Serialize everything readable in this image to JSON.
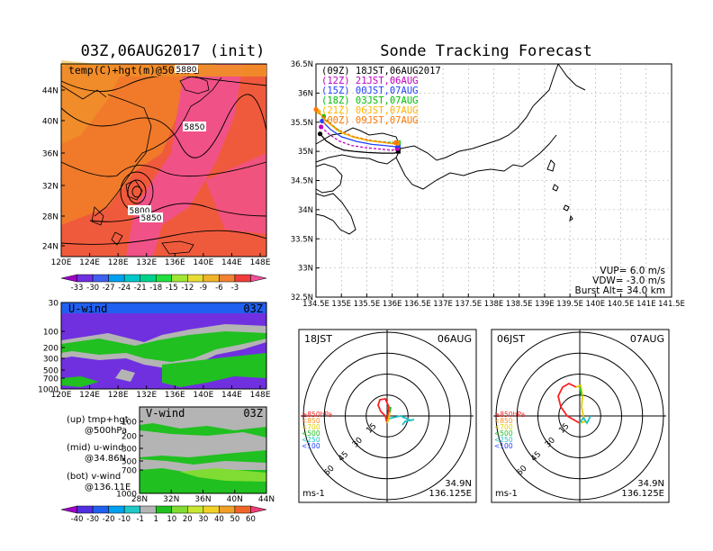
{
  "left_title": "03Z,06AUG2017 (init)",
  "right_title": "Sonde Tracking Forecast",
  "chart_data": [
    {
      "type": "heatmap",
      "panel": "upper-air map",
      "label": "temp(C)+hgt(m)@500hPa",
      "x_ticks": [
        "120E",
        "124E",
        "128E",
        "132E",
        "136E",
        "140E",
        "144E",
        "148E"
      ],
      "y_ticks": [
        "24N",
        "28N",
        "32N",
        "36N",
        "40N",
        "44N"
      ],
      "contour_labels": [
        "5880",
        "5850",
        "5800",
        "5850"
      ],
      "colorbar_ticks": [
        "-33",
        "-30",
        "-27",
        "-24",
        "-21",
        "-18",
        "-15",
        "-12",
        "-9",
        "-6",
        "-3"
      ],
      "colorbar_colors": [
        "#a000c8",
        "#7030e0",
        "#4060f0",
        "#00a0f0",
        "#00c8c8",
        "#00d28c",
        "#20e040",
        "#a0e632",
        "#e6dc32",
        "#f0b428",
        "#f08232",
        "#f03c3c",
        "#f0509a"
      ]
    },
    {
      "type": "heatmap",
      "panel": "u-wind",
      "label": "U-wind",
      "time": "03Z",
      "y_ticks": [
        "30",
        "100",
        "200",
        "300",
        "500",
        "700",
        "1000"
      ],
      "x_ticks": [
        "120E",
        "124E",
        "128E",
        "132E",
        "136E",
        "140E",
        "144E",
        "148E"
      ]
    },
    {
      "type": "heatmap",
      "panel": "v-wind",
      "label": "V-wind",
      "time": "03Z",
      "y_ticks": [
        "100",
        "200",
        "300",
        "500",
        "700",
        "1000"
      ],
      "x_ticks": [
        "28N",
        "32N",
        "36N",
        "40N",
        "44N"
      ],
      "colorbar_ticks": [
        "-40",
        "-30",
        "-20",
        "-10",
        "-1",
        "1",
        "10",
        "20",
        "30",
        "40",
        "50",
        "60"
      ],
      "colorbar_colors": [
        "#a000c8",
        "#5030e0",
        "#2060f0",
        "#00a0f0",
        "#20c8c8",
        "#b4b4b4",
        "#20c020",
        "#80dc32",
        "#c8e632",
        "#f0d228",
        "#f0a028",
        "#f06428",
        "#f03c78"
      ]
    },
    {
      "type": "line",
      "panel": "sonde tracking",
      "x_ticks": [
        "134.5E",
        "135E",
        "135.5E",
        "136E",
        "136.5E",
        "137E",
        "137.5E",
        "138E",
        "138.5E",
        "139E",
        "139.5E",
        "140E",
        "140.5E",
        "141E",
        "141.5E"
      ],
      "y_ticks": [
        "32.5N",
        "33N",
        "33.5N",
        "34N",
        "34.5N",
        "35N",
        "35.5N",
        "36N",
        "36.5N"
      ],
      "xlim": [
        134.5,
        141.5
      ],
      "ylim": [
        32.5,
        36.5
      ],
      "series": [
        {
          "name": "(09Z) 18JST,06AUG2017",
          "color": "#000000",
          "lon": [
            134.58,
            134.7,
            134.88,
            135.05,
            135.25,
            135.5,
            135.8,
            136.05,
            136.12
          ],
          "lat": [
            35.3,
            35.18,
            35.08,
            35.02,
            35.0,
            34.98,
            34.97,
            34.97,
            35.0
          ]
        },
        {
          "name": "(12Z) 21JST,06AUG",
          "color": "#c000c0",
          "lon": [
            134.6,
            134.75,
            134.95,
            135.2,
            135.5,
            135.75,
            136.0,
            136.1
          ],
          "lat": [
            35.42,
            35.3,
            35.18,
            35.1,
            35.06,
            35.04,
            35.02,
            35.05
          ]
        },
        {
          "name": "(15Z) 00JST,07AUG",
          "color": "#2040ff",
          "lon": [
            134.62,
            134.78,
            135.0,
            135.3,
            135.6,
            135.85,
            136.05,
            136.12
          ],
          "lat": [
            35.52,
            35.38,
            35.25,
            35.17,
            35.12,
            35.1,
            35.08,
            35.1
          ]
        },
        {
          "name": "(18Z) 03JST,07AUG",
          "color": "#00c000",
          "lon": [
            134.65,
            134.8,
            135.05,
            135.35,
            135.6,
            135.85,
            136.05,
            136.12
          ],
          "lat": [
            35.6,
            35.46,
            35.3,
            35.22,
            35.18,
            35.16,
            35.15,
            35.15
          ]
        },
        {
          "name": "(21Z) 06JST,07AUG",
          "color": "#ffb400",
          "lon": [
            134.55,
            134.7,
            134.95,
            135.25,
            135.55,
            135.82,
            136.02,
            136.1
          ],
          "lat": [
            35.68,
            35.52,
            35.34,
            35.24,
            35.18,
            35.15,
            35.13,
            35.14
          ]
        },
        {
          "name": "(00Z) 09JST,07AUG",
          "color": "#ff7800",
          "lon": [
            134.5,
            134.66,
            134.92,
            135.22,
            135.52,
            135.8,
            136.0,
            136.08
          ],
          "lat": [
            35.72,
            35.56,
            35.38,
            35.26,
            35.2,
            35.16,
            35.14,
            35.15
          ]
        }
      ]
    }
  ],
  "params": {
    "vup": "VUP=  6.0 m/s",
    "vdw": "VDW= -3.0 m/s",
    "burst": "Burst Alt= 34.0 km"
  },
  "hodo_left": {
    "time": "18JST",
    "date": "06AUG",
    "lat": "34.9N",
    "lon": "136.125E",
    "unit": "ms-1"
  },
  "hodo_right": {
    "time": "06JST",
    "date": "07AUG",
    "lat": "34.9N",
    "lon": "136.125E",
    "unit": "ms-1"
  },
  "hodo_rings": [
    "15",
    "30",
    "45",
    "60"
  ],
  "hodo_levels": [
    {
      "label": "≥850hPa",
      "color": "#ff2020"
    },
    {
      "label": "<850",
      "color": "#ff9020"
    },
    {
      "label": "<700",
      "color": "#e0d000"
    },
    {
      "label": "<500",
      "color": "#20c020"
    },
    {
      "label": "<250",
      "color": "#20c0c0"
    },
    {
      "label": "<100",
      "color": "#2040ff"
    }
  ],
  "legend_notes": {
    "up1": "(up)  tmp+hgt",
    "up2": "@500hPa",
    "mid1": "(mid)  u-wind",
    "mid2": "@34.86N",
    "bot1": "(bot)  v-wind",
    "bot2": "@136.11E"
  }
}
